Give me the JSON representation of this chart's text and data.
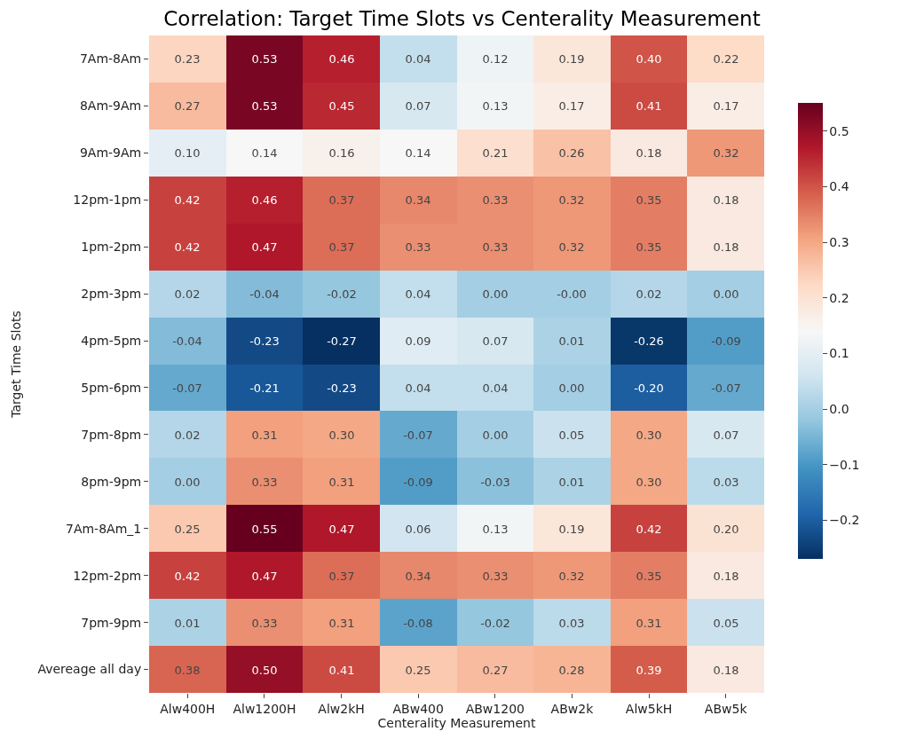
{
  "chart_data": {
    "type": "heatmap",
    "title": "Correlation: Target Time Slots vs Centerality Measurement",
    "xlabel": "Centerality Measurement",
    "ylabel": "Target Time Slots",
    "categories": [
      "Alw400H",
      "Alw1200H",
      "Alw2kH",
      "ABw400",
      "ABw1200",
      "ABw2k",
      "Alw5kH",
      "ABw5k"
    ],
    "y_categories": [
      "7Am-8Am",
      "8Am-9Am",
      "9Am-9Am",
      "12pm-1pm",
      "1pm-2pm",
      "2pm-3pm",
      "4pm-5pm",
      "5pm-6pm",
      "7pm-8pm",
      "8pm-9pm",
      "7Am-8Am_1",
      "12pm-2pm",
      "7pm-9pm",
      "Avereage all day"
    ],
    "cells": [
      [
        0.23,
        0.53,
        0.46,
        0.04,
        0.12,
        0.19,
        0.4,
        0.22
      ],
      [
        0.27,
        0.53,
        0.45,
        0.07,
        0.13,
        0.17,
        0.41,
        0.17
      ],
      [
        0.1,
        0.14,
        0.16,
        0.14,
        0.21,
        0.26,
        0.18,
        0.32
      ],
      [
        0.42,
        0.46,
        0.37,
        0.34,
        0.33,
        0.32,
        0.35,
        0.18
      ],
      [
        0.42,
        0.47,
        0.37,
        0.33,
        0.33,
        0.32,
        0.35,
        0.18
      ],
      [
        0.02,
        -0.04,
        -0.02,
        0.04,
        0.0,
        -0.0,
        0.02,
        0.0
      ],
      [
        -0.04,
        -0.23,
        -0.27,
        0.09,
        0.07,
        0.01,
        -0.26,
        -0.09
      ],
      [
        -0.07,
        -0.21,
        -0.23,
        0.04,
        0.04,
        0.0,
        -0.2,
        -0.07
      ],
      [
        0.02,
        0.31,
        0.3,
        -0.07,
        0.0,
        0.05,
        0.3,
        0.07
      ],
      [
        0.0,
        0.33,
        0.31,
        -0.09,
        -0.03,
        0.01,
        0.3,
        0.03
      ],
      [
        0.25,
        0.55,
        0.47,
        0.06,
        0.13,
        0.19,
        0.42,
        0.2
      ],
      [
        0.42,
        0.47,
        0.37,
        0.34,
        0.33,
        0.32,
        0.35,
        0.18
      ],
      [
        0.01,
        0.33,
        0.31,
        -0.08,
        -0.02,
        0.03,
        0.31,
        0.05
      ],
      [
        0.38,
        0.5,
        0.41,
        0.25,
        0.27,
        0.28,
        0.39,
        0.18
      ]
    ],
    "cell_labels": [
      [
        "0.23",
        "0.53",
        "0.46",
        "0.04",
        "0.12",
        "0.19",
        "0.40",
        "0.22"
      ],
      [
        "0.27",
        "0.53",
        "0.45",
        "0.07",
        "0.13",
        "0.17",
        "0.41",
        "0.17"
      ],
      [
        "0.10",
        "0.14",
        "0.16",
        "0.14",
        "0.21",
        "0.26",
        "0.18",
        "0.32"
      ],
      [
        "0.42",
        "0.46",
        "0.37",
        "0.34",
        "0.33",
        "0.32",
        "0.35",
        "0.18"
      ],
      [
        "0.42",
        "0.47",
        "0.37",
        "0.33",
        "0.33",
        "0.32",
        "0.35",
        "0.18"
      ],
      [
        "0.02",
        "-0.04",
        "-0.02",
        "0.04",
        "0.00",
        "-0.00",
        "0.02",
        "0.00"
      ],
      [
        "-0.04",
        "-0.23",
        "-0.27",
        "0.09",
        "0.07",
        "0.01",
        "-0.26",
        "-0.09"
      ],
      [
        "-0.07",
        "-0.21",
        "-0.23",
        "0.04",
        "0.04",
        "0.00",
        "-0.20",
        "-0.07"
      ],
      [
        "0.02",
        "0.31",
        "0.30",
        "-0.07",
        "0.00",
        "0.05",
        "0.30",
        "0.07"
      ],
      [
        "0.00",
        "0.33",
        "0.31",
        "-0.09",
        "-0.03",
        "0.01",
        "0.30",
        "0.03"
      ],
      [
        "0.25",
        "0.55",
        "0.47",
        "0.06",
        "0.13",
        "0.19",
        "0.42",
        "0.20"
      ],
      [
        "0.42",
        "0.47",
        "0.37",
        "0.34",
        "0.33",
        "0.32",
        "0.35",
        "0.18"
      ],
      [
        "0.01",
        "0.33",
        "0.31",
        "-0.08",
        "-0.02",
        "0.03",
        "0.31",
        "0.05"
      ],
      [
        "0.38",
        "0.50",
        "0.41",
        "0.25",
        "0.27",
        "0.28",
        "0.39",
        "0.18"
      ]
    ],
    "clim": [
      -0.27,
      0.55
    ],
    "cticks": [
      {
        "value": -0.2,
        "label": "−0.2"
      },
      {
        "value": -0.1,
        "label": "−0.1"
      },
      "0.0",
      0.1,
      0.2,
      0.3,
      0.4,
      0.5
    ]
  }
}
